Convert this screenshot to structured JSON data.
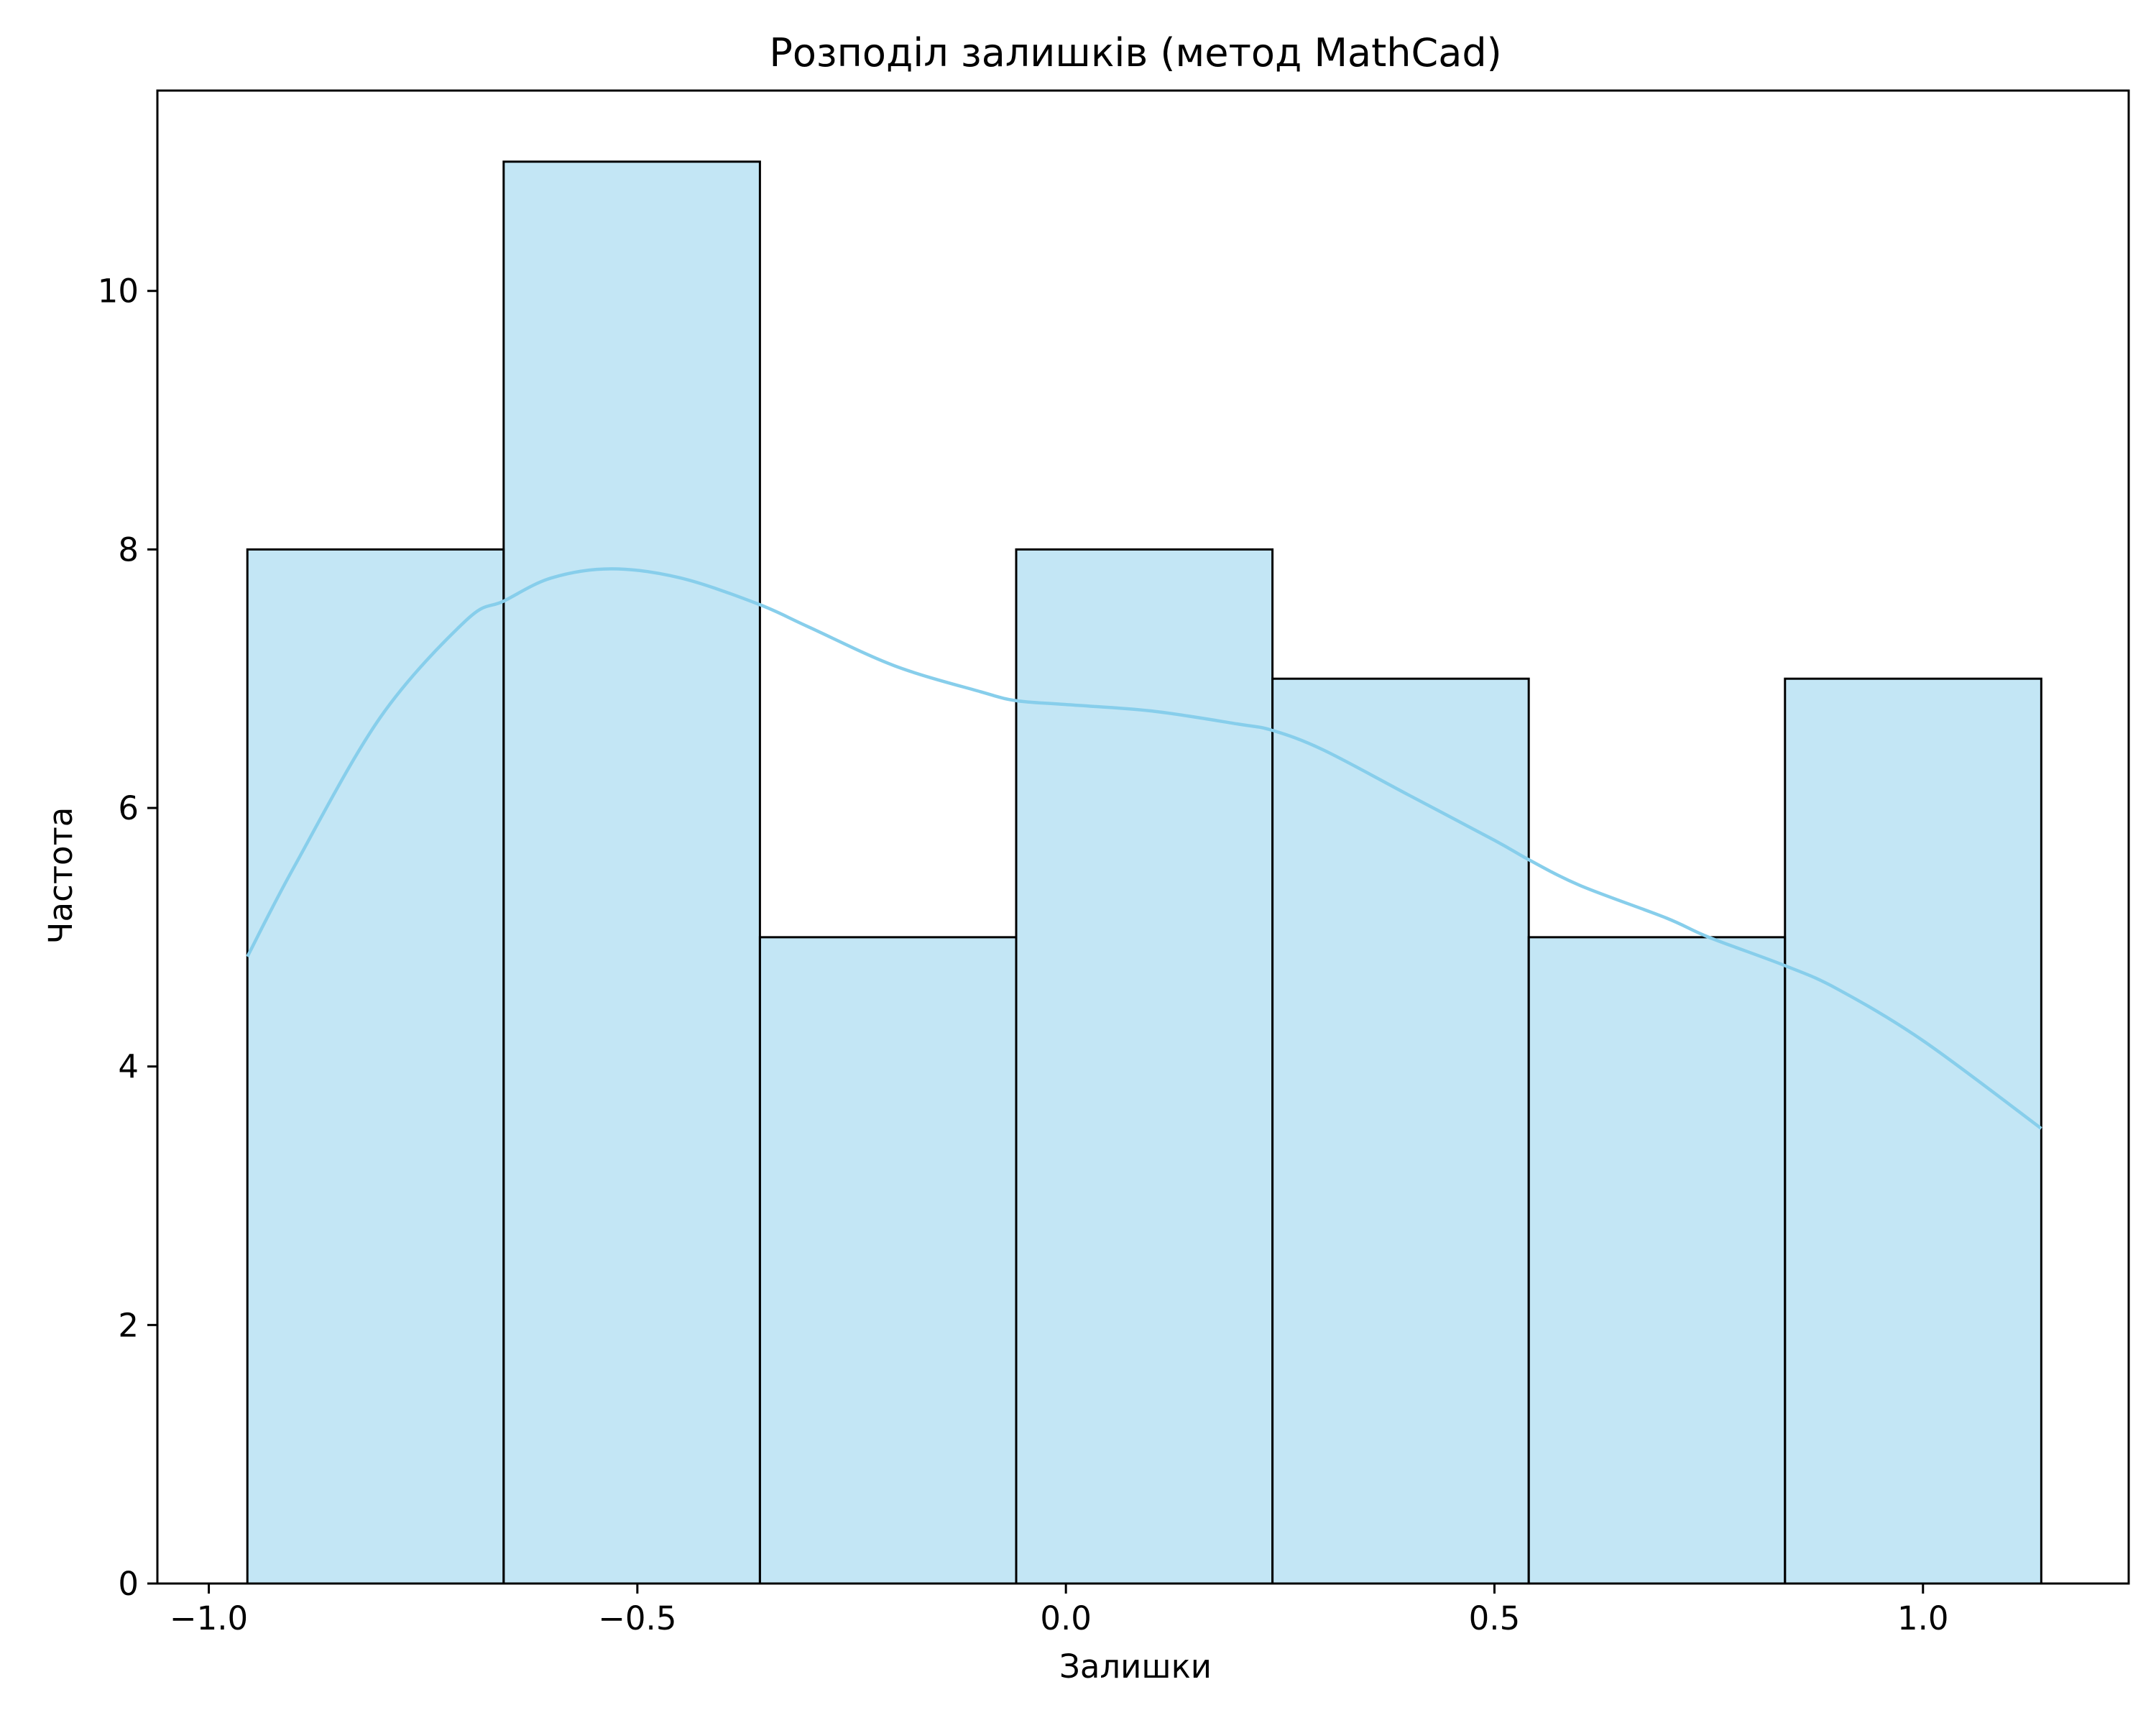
{
  "chart_data": {
    "type": "histogram",
    "title": "Розподіл залишків (метод MathCad)",
    "xlabel": "Залишки",
    "ylabel": "Частота",
    "xlim": [
      -1.06,
      1.24
    ],
    "ylim": [
      0,
      11.55
    ],
    "xticks": [
      -1.0,
      -0.5,
      0.0,
      0.5,
      1.0
    ],
    "xtick_labels": [
      "−1.0",
      "−0.5",
      "0.0",
      "0.5",
      "1.0"
    ],
    "yticks": [
      0,
      2,
      4,
      6,
      8,
      10
    ],
    "ytick_labels": [
      "0",
      "2",
      "4",
      "6",
      "8",
      "10"
    ],
    "bins": [
      {
        "start": -0.955,
        "end": -0.656,
        "count": 8
      },
      {
        "start": -0.656,
        "end": -0.357,
        "count": 11
      },
      {
        "start": -0.357,
        "end": -0.058,
        "count": 5
      },
      {
        "start": -0.058,
        "end": 0.241,
        "count": 8
      },
      {
        "start": 0.241,
        "end": 0.54,
        "count": 7
      },
      {
        "start": 0.54,
        "end": 0.839,
        "count": 5
      },
      {
        "start": 0.839,
        "end": 1.138,
        "count": 7
      }
    ],
    "kde": {
      "x": [
        -0.955,
        -0.9,
        -0.8,
        -0.7,
        -0.656,
        -0.6,
        -0.53,
        -0.45,
        -0.36,
        -0.3,
        -0.2,
        -0.1,
        -0.058,
        0.0,
        0.1,
        0.2,
        0.241,
        0.3,
        0.4,
        0.5,
        0.54,
        0.6,
        0.7,
        0.75,
        0.839,
        0.9,
        1.0,
        1.138
      ],
      "y": [
        4.85,
        5.55,
        6.7,
        7.45,
        7.6,
        7.78,
        7.85,
        7.78,
        7.58,
        7.4,
        7.1,
        6.9,
        6.83,
        6.8,
        6.75,
        6.65,
        6.6,
        6.45,
        6.1,
        5.75,
        5.6,
        5.4,
        5.15,
        5.0,
        4.78,
        4.6,
        4.2,
        3.52
      ]
    },
    "colors": {
      "bar_fill": "#87ceeb",
      "bar_fill_opacity": 0.5,
      "bar_edge": "#000000",
      "kde_line": "#87ceeb"
    },
    "grid": false,
    "legend": "none"
  }
}
